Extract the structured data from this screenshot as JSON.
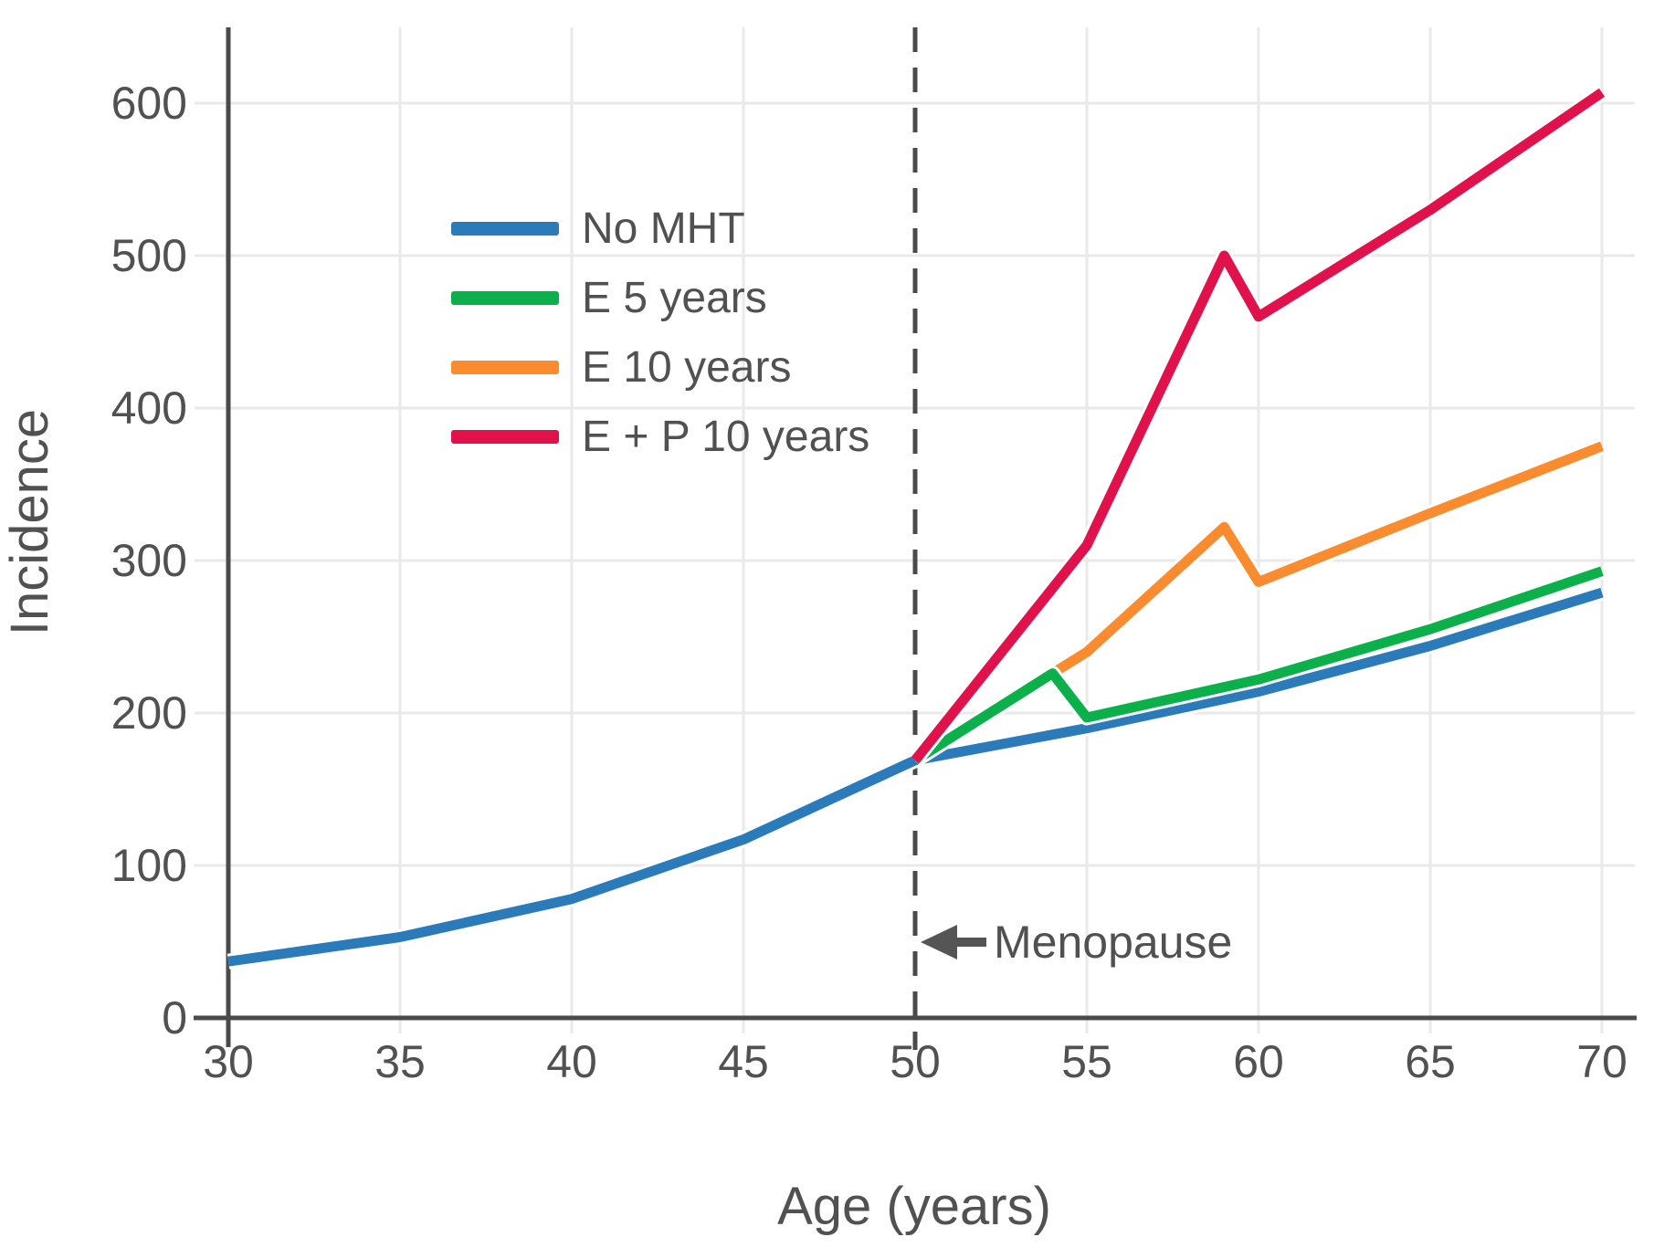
{
  "figure": {
    "background": "#ffffff",
    "text_color": "#515151",
    "grid_color": "#e9e9e9",
    "axis_color": "#4a4a4a",
    "reference_line_color": "#4a4a4a"
  },
  "chart_data": {
    "type": "line",
    "title": "",
    "xlabel": "Age (years)",
    "ylabel": "Incidence",
    "xlim": [
      30,
      70
    ],
    "ylim": [
      0,
      650
    ],
    "x_ticks": [
      30,
      35,
      40,
      45,
      50,
      55,
      60,
      65,
      70
    ],
    "y_ticks": [
      0,
      100,
      200,
      300,
      400,
      500,
      600
    ],
    "grid": true,
    "legend_position": "upper-left-inside",
    "series": [
      {
        "name": "No MHT",
        "color": "#2b7bba",
        "points": [
          [
            30,
            37
          ],
          [
            35,
            53
          ],
          [
            40,
            78
          ],
          [
            45,
            117
          ],
          [
            50,
            169
          ],
          [
            55,
            190
          ],
          [
            60,
            214
          ],
          [
            65,
            244
          ],
          [
            70,
            279
          ]
        ]
      },
      {
        "name": "E 5 years",
        "color": "#0cb04a",
        "points": [
          [
            50,
            169
          ],
          [
            54,
            226
          ],
          [
            55,
            197
          ],
          [
            60,
            222
          ],
          [
            65,
            255
          ],
          [
            70,
            293
          ]
        ]
      },
      {
        "name": "E 10 years",
        "color": "#fa8b2f",
        "points": [
          [
            50,
            169
          ],
          [
            54,
            226
          ],
          [
            55,
            240
          ],
          [
            59,
            322
          ],
          [
            60,
            286
          ],
          [
            65,
            331
          ],
          [
            70,
            375
          ]
        ]
      },
      {
        "name": "E + P 10 years",
        "color": "#e0114b",
        "points": [
          [
            50,
            169
          ],
          [
            55,
            310
          ],
          [
            59,
            500
          ],
          [
            60,
            460
          ],
          [
            65,
            530
          ],
          [
            70,
            607
          ]
        ]
      }
    ],
    "reference_line": {
      "x": 50,
      "style": "dashed"
    },
    "annotations": [
      {
        "text": "Menopause",
        "x": 50,
        "y": 50,
        "arrow": "left-pointing"
      }
    ]
  }
}
